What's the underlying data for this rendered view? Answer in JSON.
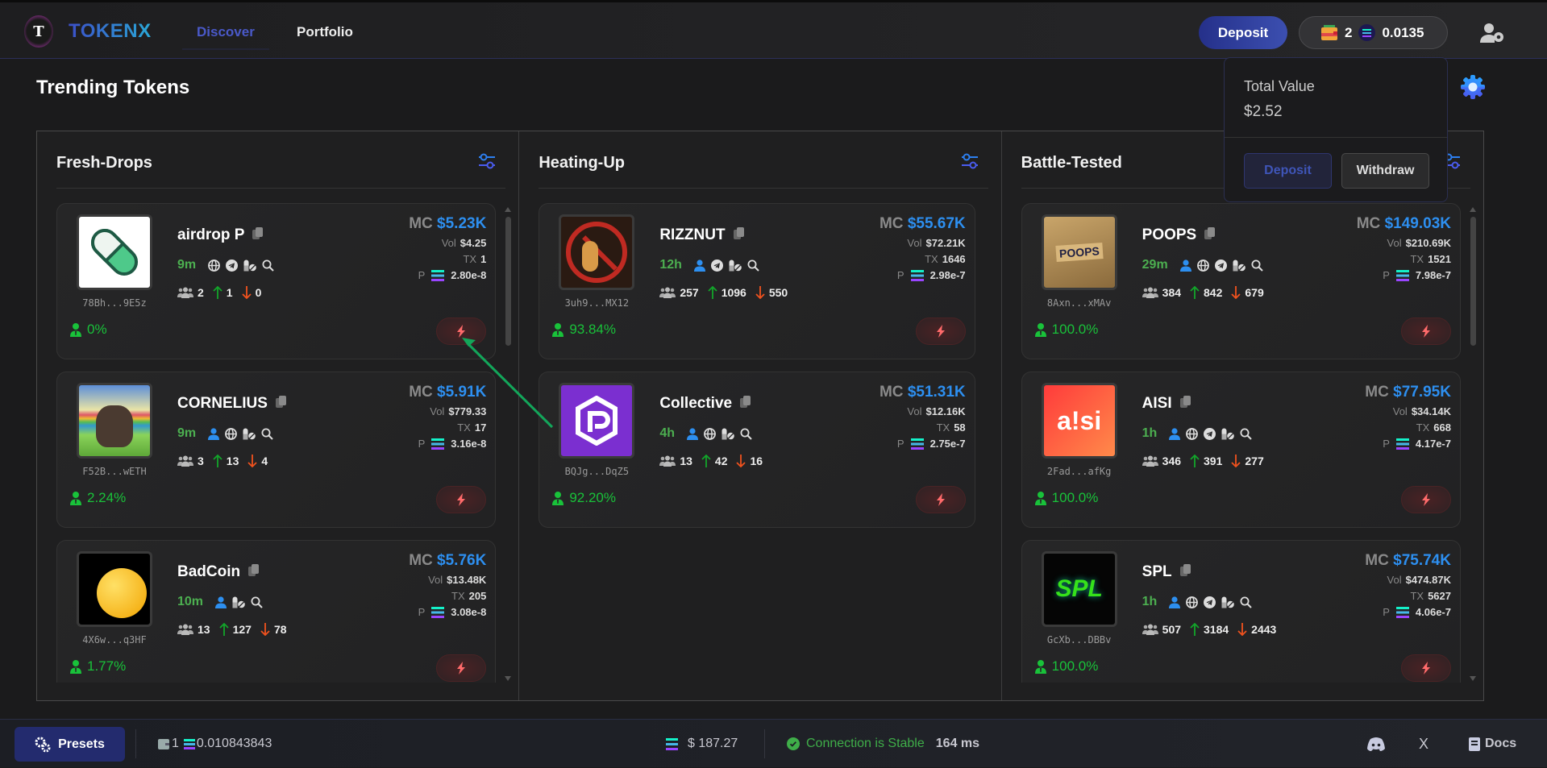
{
  "header": {
    "brand": "TOKENX",
    "logo_letter": "T",
    "nav": [
      {
        "label": "Discover",
        "active": true
      },
      {
        "label": "Portfolio",
        "active": false
      }
    ],
    "deposit_label": "Deposit",
    "wallet_count": "2",
    "sol_balance": "0.0135"
  },
  "page_title": "Trending Tokens",
  "wallet_popup": {
    "total_label": "Total Value",
    "total_value": "$2.52",
    "deposit_label": "Deposit",
    "withdraw_label": "Withdraw"
  },
  "colors": {
    "accent": "#2d8ff0",
    "brand": "#3b4fc8",
    "positive": "#19c23a",
    "buy": "#12a52a",
    "sell": "#f0521e",
    "quickbuy": "#ff6b6b"
  },
  "columns": [
    {
      "title": "Fresh-Drops",
      "scroll": true,
      "tokens": [
        {
          "name": "airdrop P",
          "address": "78Bh...9E5z",
          "age": "9m",
          "socials": [
            "globe",
            "telegram",
            "pill",
            "search"
          ],
          "holders": "2",
          "buys": "1",
          "sells": "0",
          "mc": "$5.23K",
          "vol": "$4.25",
          "tx": "1",
          "price": "2.80e-8",
          "holder_pct": "0%",
          "image": "pill-capsule"
        },
        {
          "name": "CORNELIUS",
          "address": "F52B...wETH",
          "age": "9m",
          "socials": [
            "user",
            "globe",
            "pill",
            "search"
          ],
          "holders": "3",
          "buys": "13",
          "sells": "4",
          "mc": "$5.91K",
          "vol": "$779.33",
          "tx": "17",
          "price": "3.16e-8",
          "holder_pct": "2.24%",
          "image": "rainbow-animal"
        },
        {
          "name": "BadCoin",
          "address": "4X6w...q3HF",
          "age": "10m",
          "socials": [
            "user",
            "pill",
            "search"
          ],
          "holders": "13",
          "buys": "127",
          "sells": "78",
          "mc": "$5.76K",
          "vol": "$13.48K",
          "tx": "205",
          "price": "3.08e-8",
          "holder_pct": "1.77%",
          "image": "thumbs-down-emoji"
        }
      ]
    },
    {
      "title": "Heating-Up",
      "scroll": false,
      "tokens": [
        {
          "name": "RIZZNUT",
          "address": "3uh9...MX12",
          "age": "12h",
          "socials": [
            "user",
            "telegram",
            "pill",
            "search"
          ],
          "holders": "257",
          "buys": "1096",
          "sells": "550",
          "mc": "$55.67K",
          "vol": "$72.21K",
          "tx": "1646",
          "price": "2.98e-7",
          "holder_pct": "93.84%",
          "image": "no-peanut"
        },
        {
          "name": "Collective",
          "address": "BQJg...DqZ5",
          "age": "4h",
          "socials": [
            "user",
            "globe",
            "pill",
            "search"
          ],
          "holders": "13",
          "buys": "42",
          "sells": "16",
          "mc": "$51.31K",
          "vol": "$12.16K",
          "tx": "58",
          "price": "2.75e-7",
          "holder_pct": "92.20%",
          "image": "purple-hexagon"
        }
      ]
    },
    {
      "title": "Battle-Tested",
      "scroll": true,
      "tokens": [
        {
          "name": "POOPS",
          "address": "8Axn...xMAv",
          "age": "29m",
          "socials": [
            "user",
            "globe",
            "telegram",
            "pill",
            "search"
          ],
          "holders": "384",
          "buys": "842",
          "sells": "679",
          "mc": "$149.03K",
          "vol": "$210.69K",
          "tx": "1521",
          "price": "7.98e-7",
          "holder_pct": "100.0%",
          "image": "boxes",
          "image_text": "POOPS"
        },
        {
          "name": "AISI",
          "address": "2Fad...afKg",
          "age": "1h",
          "socials": [
            "user",
            "globe",
            "telegram",
            "pill",
            "search"
          ],
          "holders": "346",
          "buys": "391",
          "sells": "277",
          "mc": "$77.95K",
          "vol": "$34.14K",
          "tx": "668",
          "price": "4.17e-7",
          "holder_pct": "100.0%",
          "image": "aisi-logo",
          "image_text": "a!si"
        },
        {
          "name": "SPL",
          "address": "GcXb...DBBv",
          "age": "1h",
          "socials": [
            "user",
            "globe",
            "telegram",
            "pill",
            "search"
          ],
          "holders": "507",
          "buys": "3184",
          "sells": "2443",
          "mc": "$75.74K",
          "vol": "$474.87K",
          "tx": "5627",
          "price": "4.06e-7",
          "holder_pct": "100.0%",
          "image": "spl-logo",
          "image_text": "SPL"
        }
      ]
    }
  ],
  "labels": {
    "mc": "MC",
    "vol": "Vol",
    "tx": "TX",
    "price": "P"
  },
  "footer": {
    "presets_label": "Presets",
    "wallet_count": "1",
    "wallet_sol": "0.010843843",
    "sol_price": "$ 187.27",
    "connection_status": "Connection is Stable",
    "latency": "164 ms",
    "x_label": "X",
    "docs_label": "Docs"
  }
}
